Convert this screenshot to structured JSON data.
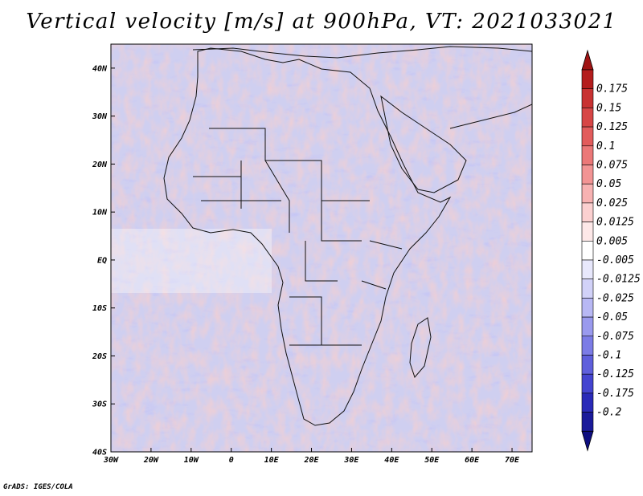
{
  "title": "Vertical velocity [m/s] at 900hPa, VT: 2021033021",
  "credit": "GrADS: IGES/COLA",
  "map": {
    "lon_range": [
      -30,
      75
    ],
    "lat_range": [
      -40,
      45
    ],
    "lon_ticks": [
      {
        "value": -30,
        "label": "30W"
      },
      {
        "value": -20,
        "label": "20W"
      },
      {
        "value": -10,
        "label": "10W"
      },
      {
        "value": 0,
        "label": "0"
      },
      {
        "value": 10,
        "label": "10E"
      },
      {
        "value": 20,
        "label": "20E"
      },
      {
        "value": 30,
        "label": "30E"
      },
      {
        "value": 40,
        "label": "40E"
      },
      {
        "value": 50,
        "label": "50E"
      },
      {
        "value": 60,
        "label": "60E"
      },
      {
        "value": 70,
        "label": "70E"
      }
    ],
    "lat_ticks": [
      {
        "value": 40,
        "label": "40N"
      },
      {
        "value": 30,
        "label": "30N"
      },
      {
        "value": 20,
        "label": "20N"
      },
      {
        "value": 10,
        "label": "10N"
      },
      {
        "value": 0,
        "label": "EQ"
      },
      {
        "value": -10,
        "label": "10S"
      },
      {
        "value": -20,
        "label": "20S"
      },
      {
        "value": -30,
        "label": "30S"
      },
      {
        "value": -40,
        "label": "40S"
      }
    ]
  },
  "colorbar": {
    "bins": [
      {
        "color": "#b41e1e",
        "label": "0.175"
      },
      {
        "color": "#c83232",
        "label": "0.15"
      },
      {
        "color": "#d74646",
        "label": "0.125"
      },
      {
        "color": "#e25c5c",
        "label": "0.1"
      },
      {
        "color": "#eb7878",
        "label": "0.075"
      },
      {
        "color": "#f29494",
        "label": "0.05"
      },
      {
        "color": "#f7b2b2",
        "label": "0.025"
      },
      {
        "color": "#fbd0d0",
        "label": "0.0125"
      },
      {
        "color": "#fde8e8",
        "label": "0.005"
      },
      {
        "color": "#ffffff",
        "label": "-0.005"
      },
      {
        "color": "#e8e8fc",
        "label": "-0.0125"
      },
      {
        "color": "#d2d2f8",
        "label": "-0.025"
      },
      {
        "color": "#b8b8f4",
        "label": "-0.05"
      },
      {
        "color": "#9a9aee",
        "label": "-0.075"
      },
      {
        "color": "#7c7ce6",
        "label": "-0.1"
      },
      {
        "color": "#5f5fdc",
        "label": "-0.125"
      },
      {
        "color": "#4444d0",
        "label": "-0.175"
      },
      {
        "color": "#2a2ab8",
        "label": "-0.2"
      },
      {
        "color": "#1a1a9a",
        "label": ""
      }
    ],
    "top_arrow_color": "#a01414",
    "bottom_arrow_color": "#0e0e80"
  }
}
